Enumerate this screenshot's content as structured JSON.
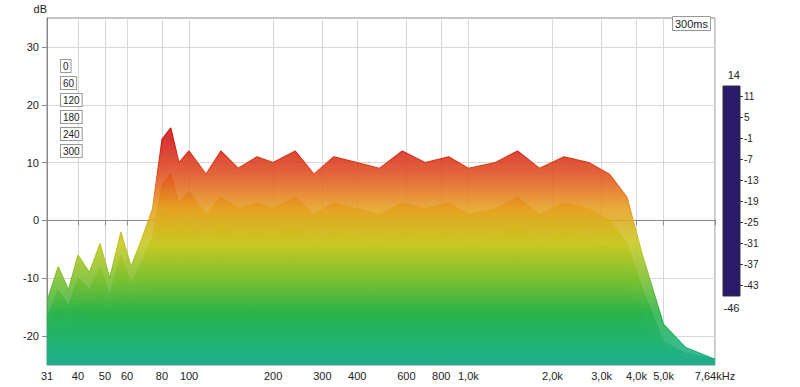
{
  "chart_data": {
    "type": "area",
    "title": "300ms",
    "y_label": "dB",
    "log": "x",
    "grid": true,
    "legend": "top-left",
    "x": [
      31,
      34,
      37,
      40,
      44,
      48,
      52,
      57,
      62,
      68,
      74,
      80,
      86,
      92,
      100,
      115,
      130,
      150,
      175,
      200,
      240,
      280,
      330,
      400,
      480,
      580,
      700,
      850,
      1000,
      1250,
      1500,
      1800,
      2200,
      2700,
      3200,
      3700,
      4200,
      5000,
      6000,
      7640
    ],
    "xlim": [
      31,
      7640
    ],
    "xticks": [
      31,
      40,
      50,
      60,
      80,
      100,
      200,
      300,
      400,
      600,
      800,
      {
        "value": 1000,
        "label": "1,0k"
      },
      {
        "value": 2000,
        "label": "2,0k"
      },
      {
        "value": 3000,
        "label": "3,0k"
      },
      {
        "value": 4000,
        "label": "4,0k"
      },
      {
        "value": 5000,
        "label": "5,0k"
      },
      {
        "value": 7640,
        "label": "7,64kHz"
      }
    ],
    "ylim": [
      -25,
      35
    ],
    "yticks": [
      -20,
      -10,
      0,
      10,
      20,
      30
    ],
    "series": [
      {
        "name": "0",
        "values": [
          -14,
          -8,
          -12,
          -6,
          -9,
          -4,
          -10,
          -2,
          -8,
          -3,
          2,
          14,
          16,
          10,
          12,
          8,
          12,
          9,
          11,
          10,
          12,
          8,
          11,
          10,
          9,
          12,
          10,
          11,
          9,
          10,
          12,
          9,
          11,
          10,
          8,
          4,
          -6,
          -18,
          -22,
          -24
        ]
      },
      {
        "name": "60",
        "values": [
          -17,
          -12,
          -15,
          -10,
          -12,
          -8,
          -13,
          -6,
          -11,
          -7,
          -3,
          6,
          8,
          3,
          5,
          1,
          4,
          2,
          3,
          2,
          4,
          1,
          3,
          2,
          1,
          3,
          2,
          3,
          1,
          2,
          4,
          1,
          3,
          2,
          0,
          -4,
          -12,
          -21,
          -23,
          -24
        ]
      },
      {
        "name": "120",
        "values": [
          -19,
          -15,
          -18,
          -13,
          -15,
          -11,
          -16,
          -9,
          -14,
          -10,
          -7,
          1,
          3,
          -2,
          0,
          -4,
          -1,
          -3,
          -2,
          -3,
          -1,
          -4,
          -2,
          -3,
          -4,
          -2,
          -3,
          -2,
          -4,
          -3,
          -1,
          -4,
          -2,
          -3,
          -5,
          -9,
          -16,
          -22,
          -24,
          -24
        ]
      },
      {
        "name": "180",
        "values": [
          -21,
          -18,
          -20,
          -16,
          -18,
          -14,
          -18,
          -12,
          -16,
          -13,
          -10,
          -4,
          -2,
          -7,
          -5,
          -8,
          -6,
          -8,
          -7,
          -8,
          -6,
          -9,
          -7,
          -8,
          -9,
          -7,
          -8,
          -7,
          -9,
          -8,
          -6,
          -9,
          -7,
          -8,
          -10,
          -13,
          -19,
          -23,
          -24,
          -24
        ]
      },
      {
        "name": "240",
        "values": [
          -22,
          -20,
          -22,
          -18,
          -20,
          -17,
          -20,
          -15,
          -18,
          -16,
          -13,
          -8,
          -6,
          -11,
          -9,
          -12,
          -10,
          -12,
          -11,
          -12,
          -10,
          -13,
          -11,
          -12,
          -13,
          -11,
          -12,
          -11,
          -13,
          -12,
          -10,
          -13,
          -11,
          -12,
          -14,
          -16,
          -21,
          -24,
          -24,
          -24
        ]
      },
      {
        "name": "300",
        "values": [
          -23,
          -22,
          -23,
          -20,
          -22,
          -19,
          -22,
          -18,
          -20,
          -19,
          -16,
          -12,
          -10,
          -14,
          -13,
          -15,
          -14,
          -16,
          -15,
          -16,
          -14,
          -17,
          -15,
          -16,
          -17,
          -15,
          -16,
          -15,
          -17,
          -16,
          -14,
          -17,
          -15,
          -16,
          -18,
          -19,
          -23,
          -24,
          -24,
          -24
        ]
      }
    ],
    "colorbar": {
      "range": [
        -46,
        14
      ],
      "ticks": [
        11,
        5,
        -1,
        -7,
        -13,
        -19,
        -25,
        -31,
        -37,
        -43
      ]
    }
  }
}
